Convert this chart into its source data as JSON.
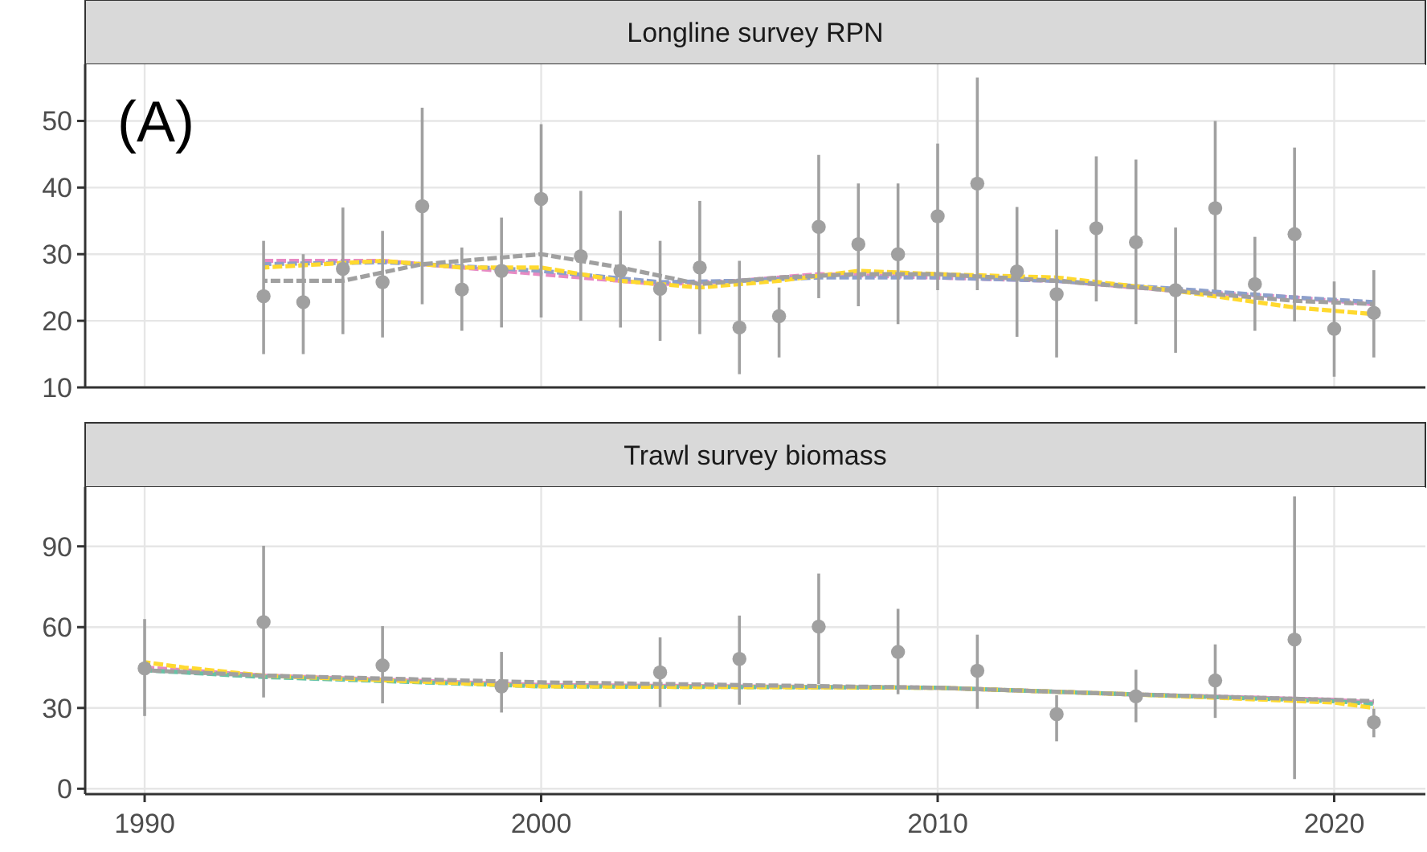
{
  "chart_data": [
    {
      "type": "line",
      "title": "Longline survey RPN",
      "annotations": [
        "(A)"
      ],
      "xlim": [
        1988.5,
        2022.3
      ],
      "xticks": [
        1990,
        2000,
        2010,
        2020
      ],
      "ylim": [
        10,
        58.5
      ],
      "yticks": [
        10,
        20,
        30,
        40,
        50
      ],
      "grid": true,
      "tick_labels": "y",
      "series": [
        {
          "color": "#e78ac3",
          "line_style": "dashed",
          "x": [
            1993,
            1996,
            1997,
            2000,
            2003,
            2005,
            2007,
            2010,
            2013,
            2016,
            2019,
            2021
          ],
          "values": [
            29,
            29,
            28.5,
            27,
            25.5,
            26,
            27,
            26.5,
            26,
            24.5,
            23.5,
            22.5
          ]
        },
        {
          "color": "#8da0cb",
          "line_style": "dashed",
          "x": [
            1993,
            1996,
            1997,
            2000,
            2003,
            2005,
            2007,
            2010,
            2013,
            2016,
            2019,
            2021
          ],
          "values": [
            28.5,
            28.8,
            28.5,
            27.5,
            25.8,
            26,
            26.5,
            26.5,
            26,
            24.8,
            23.5,
            22.8
          ]
        },
        {
          "color": "#ffd92f",
          "line_style": "dashed",
          "x": [
            1993,
            1996,
            1998,
            2000,
            2002,
            2004,
            2006,
            2008,
            2010,
            2013,
            2016,
            2019,
            2021
          ],
          "values": [
            28,
            29,
            28,
            28,
            26,
            25,
            26,
            27.5,
            27,
            26.5,
            24.5,
            22,
            21
          ]
        },
        {
          "color": "#a0a0a0",
          "line_style": "dashed",
          "x": [
            1993,
            1995,
            1997,
            2000,
            2002,
            2004,
            2006,
            2008,
            2010,
            2013,
            2016,
            2019,
            2021
          ],
          "values": [
            26,
            26,
            28.5,
            30,
            28,
            25.5,
            26.5,
            27,
            27,
            26,
            24.5,
            23,
            22.5
          ]
        },
        {
          "type": "scatter",
          "color": "#a0a0a0",
          "marker": "circle",
          "x": [
            1993,
            1994,
            1995,
            1996,
            1997,
            1998,
            1999,
            2000,
            2001,
            2002,
            2003,
            2004,
            2005,
            2006,
            2007,
            2008,
            2009,
            2010,
            2011,
            2012,
            2013,
            2014,
            2015,
            2016,
            2017,
            2018,
            2019,
            2020,
            2021
          ],
          "values": [
            23.7,
            22.8,
            27.8,
            25.8,
            37.2,
            24.7,
            27.5,
            38.3,
            29.7,
            27.5,
            24.8,
            28,
            19,
            20.7,
            34.1,
            31.5,
            30,
            35.7,
            40.6,
            27.4,
            24,
            33.9,
            31.8,
            24.6,
            36.9,
            25.5,
            33,
            18.8,
            21.2
          ],
          "errors": [
            [
              15,
              32
            ],
            [
              15,
              30
            ],
            [
              18,
              37
            ],
            [
              17.5,
              33.5
            ],
            [
              22.5,
              52
            ],
            [
              18.5,
              31
            ],
            [
              19,
              35.5
            ],
            [
              20.5,
              49.5
            ],
            [
              20,
              39.5
            ],
            [
              19,
              36.5
            ],
            [
              17,
              32
            ],
            [
              18,
              38
            ],
            [
              12,
              29
            ],
            [
              14.5,
              25
            ],
            [
              23.4,
              44.9
            ],
            [
              22.2,
              40.6
            ],
            [
              19.5,
              40.6
            ],
            [
              24.6,
              46.6
            ],
            [
              24.6,
              56.5
            ],
            [
              17.6,
              37.1
            ],
            [
              14.5,
              33.7
            ],
            [
              22.9,
              44.7
            ],
            [
              19.5,
              44.2
            ],
            [
              15.2,
              34
            ],
            [
              24.6,
              50
            ],
            [
              18.5,
              32.6
            ],
            [
              19.9,
              46
            ],
            [
              11.6,
              25.9
            ],
            [
              14.5,
              27.6
            ]
          ]
        }
      ]
    },
    {
      "type": "line",
      "title": "Trawl survey biomass",
      "xlim": [
        1988.5,
        2022.3
      ],
      "xticks": [
        1990,
        2000,
        2010,
        2020
      ],
      "ylim": [
        -2,
        112
      ],
      "yticks": [
        0,
        30,
        60,
        90
      ],
      "grid": true,
      "series": [
        {
          "color": "#e78ac3",
          "line_style": "dashed",
          "x": [
            1990,
            1993,
            2000,
            2010,
            2015,
            2020,
            2021
          ],
          "values": [
            45,
            42,
            38.5,
            37.5,
            35,
            33,
            32
          ]
        },
        {
          "color": "#66c2a5",
          "line_style": "dashed",
          "x": [
            1990,
            1993,
            2000,
            2010,
            2015,
            2020,
            2021
          ],
          "values": [
            44,
            41.5,
            38,
            37.5,
            35,
            32.5,
            31.5
          ]
        },
        {
          "color": "#ffd92f",
          "line_style": "dashed",
          "x": [
            1990,
            1991,
            1993,
            2000,
            2010,
            2015,
            2020,
            2021
          ],
          "values": [
            47,
            45,
            42,
            38,
            37.5,
            35,
            32,
            30
          ]
        },
        {
          "color": "#a0a0a0",
          "line_style": "dashed",
          "x": [
            1990,
            1993,
            2000,
            2010,
            2015,
            2020,
            2021
          ],
          "values": [
            44,
            42,
            39.5,
            37.5,
            35,
            33,
            32.5
          ]
        },
        {
          "type": "scatter",
          "color": "#a0a0a0",
          "marker": "circle",
          "x": [
            1990,
            1993,
            1996,
            1999,
            2003,
            2005,
            2007,
            2009,
            2011,
            2013,
            2015,
            2017,
            2019,
            2021
          ],
          "values": [
            44.7,
            61.9,
            45.8,
            38,
            43.2,
            48.2,
            60.2,
            50.8,
            43.8,
            27.7,
            34.3,
            40.2,
            55.4,
            24.7
          ],
          "errors": [
            [
              27,
              63
            ],
            [
              33.9,
              90.2
            ],
            [
              31.7,
              60.4
            ],
            [
              28.3,
              50.8
            ],
            [
              30.3,
              56.2
            ],
            [
              31.2,
              64.3
            ],
            [
              38.8,
              79.9
            ],
            [
              35.1,
              66.8
            ],
            [
              29.7,
              57.2
            ],
            [
              17.6,
              34.7
            ],
            [
              24.7,
              44.2
            ],
            [
              26.3,
              53.6
            ],
            [
              3.6,
              108.6
            ],
            [
              19.1,
              29.7
            ]
          ]
        }
      ]
    }
  ]
}
